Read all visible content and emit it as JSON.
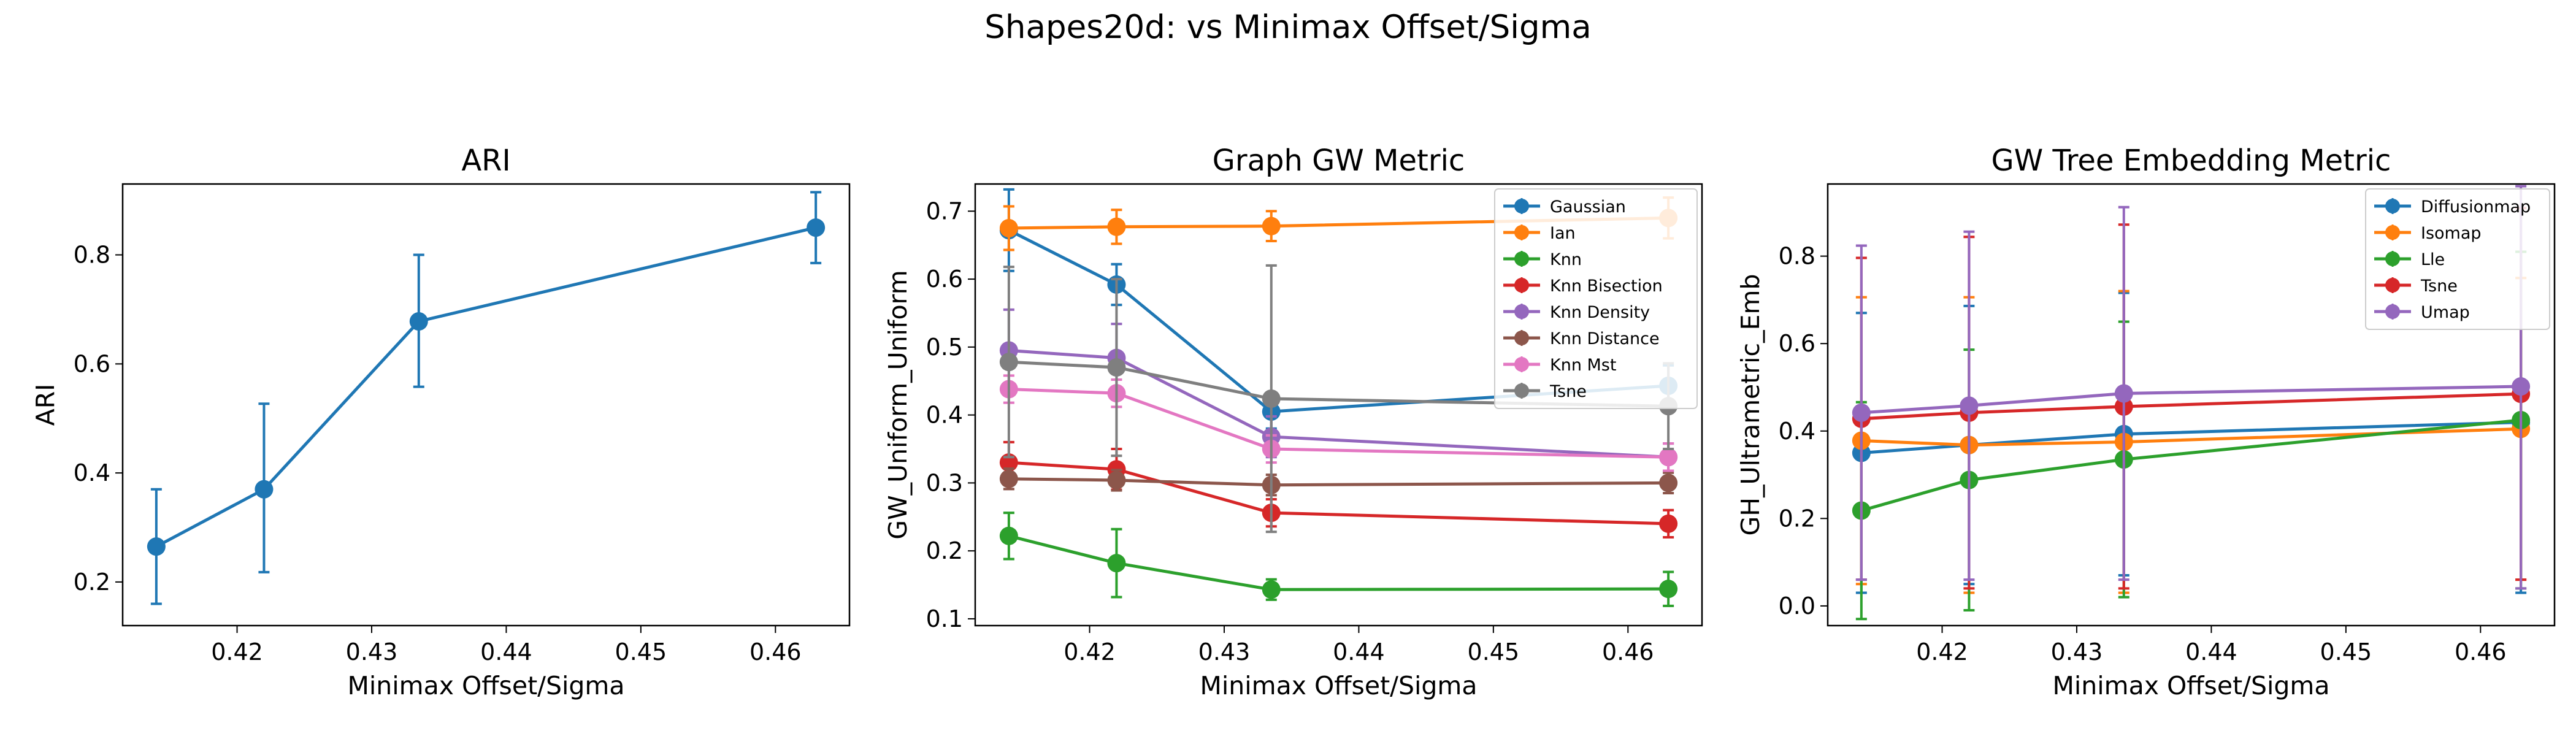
{
  "figure": {
    "title": "Shapes20d: vs Minimax Offset/Sigma"
  },
  "chart_data": [
    {
      "type": "line",
      "title": "ARI",
      "xlabel": "Minimax Offset/Sigma",
      "ylabel": "ARI",
      "xlim": [
        0.4115,
        0.4655
      ],
      "ylim": [
        0.12,
        0.93
      ],
      "xticks": [
        0.42,
        0.43,
        0.44,
        0.45,
        0.46
      ],
      "xtick_labels": [
        "0.42",
        "0.43",
        "0.44",
        "0.45",
        "0.46"
      ],
      "yticks": [
        0.2,
        0.4,
        0.6,
        0.8
      ],
      "ytick_labels": [
        "0.2",
        "0.4",
        "0.6",
        "0.8"
      ],
      "x": [
        0.414,
        0.422,
        0.4335,
        0.463
      ],
      "series": [
        {
          "color": "#1f77b4",
          "values": [
            0.265,
            0.37,
            0.678,
            0.85
          ],
          "err_low": [
            0.16,
            0.218,
            0.558,
            0.785
          ],
          "err_high": [
            0.37,
            0.527,
            0.8,
            0.915
          ]
        }
      ]
    },
    {
      "type": "line",
      "title": "Graph GW Metric",
      "xlabel": "Minimax Offset/Sigma",
      "ylabel": "GW_Uniform_Uniform",
      "xlim": [
        0.4115,
        0.4655
      ],
      "ylim": [
        0.09,
        0.74
      ],
      "xticks": [
        0.42,
        0.43,
        0.44,
        0.45,
        0.46
      ],
      "xtick_labels": [
        "0.42",
        "0.43",
        "0.44",
        "0.45",
        "0.46"
      ],
      "yticks": [
        0.1,
        0.2,
        0.3,
        0.4,
        0.5,
        0.6,
        0.7
      ],
      "ytick_labels": [
        "0.1",
        "0.2",
        "0.3",
        "0.4",
        "0.5",
        "0.6",
        "0.7"
      ],
      "legend_position": "top-right",
      "x": [
        0.414,
        0.422,
        0.4335,
        0.463
      ],
      "series": [
        {
          "name": "Gaussian",
          "color": "#1f77b4",
          "values": [
            0.672,
            0.592,
            0.405,
            0.443
          ],
          "err_low": [
            0.612,
            0.562,
            0.38,
            0.413
          ],
          "err_high": [
            0.732,
            0.622,
            0.43,
            0.473
          ]
        },
        {
          "name": "Ian",
          "color": "#ff7f0e",
          "values": [
            0.675,
            0.677,
            0.678,
            0.69
          ],
          "err_low": [
            0.643,
            0.652,
            0.656,
            0.66
          ],
          "err_high": [
            0.707,
            0.702,
            0.7,
            0.72
          ]
        },
        {
          "name": "Knn",
          "color": "#2ca02c",
          "values": [
            0.222,
            0.182,
            0.143,
            0.144
          ],
          "err_low": [
            0.188,
            0.132,
            0.128,
            0.119
          ],
          "err_high": [
            0.256,
            0.232,
            0.158,
            0.169
          ]
        },
        {
          "name": "Knn Bisection",
          "color": "#d62728",
          "values": [
            0.33,
            0.32,
            0.256,
            0.24
          ],
          "err_low": [
            0.3,
            0.29,
            0.236,
            0.22
          ],
          "err_high": [
            0.36,
            0.35,
            0.276,
            0.26
          ]
        },
        {
          "name": "Knn Density",
          "color": "#9467bd",
          "values": [
            0.495,
            0.484,
            0.368,
            0.338
          ],
          "err_low": [
            0.435,
            0.434,
            0.338,
            0.318
          ],
          "err_high": [
            0.555,
            0.534,
            0.398,
            0.358
          ]
        },
        {
          "name": "Knn Distance",
          "color": "#8c564b",
          "values": [
            0.306,
            0.304,
            0.297,
            0.3
          ],
          "err_low": [
            0.291,
            0.289,
            0.282,
            0.285
          ],
          "err_high": [
            0.321,
            0.319,
            0.312,
            0.315
          ]
        },
        {
          "name": "Knn Mst",
          "color": "#e377c2",
          "values": [
            0.438,
            0.432,
            0.35,
            0.338
          ],
          "err_low": [
            0.418,
            0.412,
            0.33,
            0.318
          ],
          "err_high": [
            0.458,
            0.452,
            0.37,
            0.358
          ]
        },
        {
          "name": "Tsne",
          "color": "#7f7f7f",
          "values": [
            0.478,
            0.47,
            0.424,
            0.413
          ],
          "err_low": [
            0.338,
            0.34,
            0.228,
            0.35
          ],
          "err_high": [
            0.618,
            0.6,
            0.62,
            0.476
          ]
        }
      ]
    },
    {
      "type": "line",
      "title": "GW Tree Embedding Metric",
      "xlabel": "Minimax Offset/Sigma",
      "ylabel": "GH_Ultrametric_Emb",
      "xlim": [
        0.4115,
        0.4655
      ],
      "ylim": [
        -0.045,
        0.965
      ],
      "xticks": [
        0.42,
        0.43,
        0.44,
        0.45,
        0.46
      ],
      "xtick_labels": [
        "0.42",
        "0.43",
        "0.44",
        "0.45",
        "0.46"
      ],
      "yticks": [
        0.0,
        0.2,
        0.4,
        0.6,
        0.8
      ],
      "ytick_labels": [
        "0.0",
        "0.2",
        "0.4",
        "0.6",
        "0.8"
      ],
      "legend_position": "top-right",
      "x": [
        0.414,
        0.422,
        0.4335,
        0.463
      ],
      "series": [
        {
          "name": "Diffusionmap",
          "color": "#1f77b4",
          "values": [
            0.35,
            0.368,
            0.393,
            0.42
          ],
          "err_low": [
            0.03,
            0.05,
            0.07,
            0.03
          ],
          "err_high": [
            0.67,
            0.686,
            0.716,
            0.81
          ]
        },
        {
          "name": "Isomap",
          "color": "#ff7f0e",
          "values": [
            0.378,
            0.368,
            0.375,
            0.405
          ],
          "err_low": [
            0.05,
            0.03,
            0.03,
            0.06
          ],
          "err_high": [
            0.706,
            0.706,
            0.72,
            0.75
          ]
        },
        {
          "name": "Lle",
          "color": "#2ca02c",
          "values": [
            0.218,
            0.288,
            0.335,
            0.425
          ],
          "err_low": [
            -0.03,
            -0.01,
            0.02,
            0.04
          ],
          "err_high": [
            0.466,
            0.586,
            0.65,
            0.81
          ]
        },
        {
          "name": "Tsne",
          "color": "#d62728",
          "values": [
            0.428,
            0.442,
            0.456,
            0.485
          ],
          "err_low": [
            0.06,
            0.04,
            0.04,
            0.06
          ],
          "err_high": [
            0.796,
            0.844,
            0.872,
            0.91
          ]
        },
        {
          "name": "Umap",
          "color": "#9467bd",
          "values": [
            0.442,
            0.458,
            0.486,
            0.502
          ],
          "err_low": [
            0.06,
            0.06,
            0.06,
            0.04
          ],
          "err_high": [
            0.824,
            0.856,
            0.912,
            0.96
          ]
        }
      ]
    }
  ]
}
